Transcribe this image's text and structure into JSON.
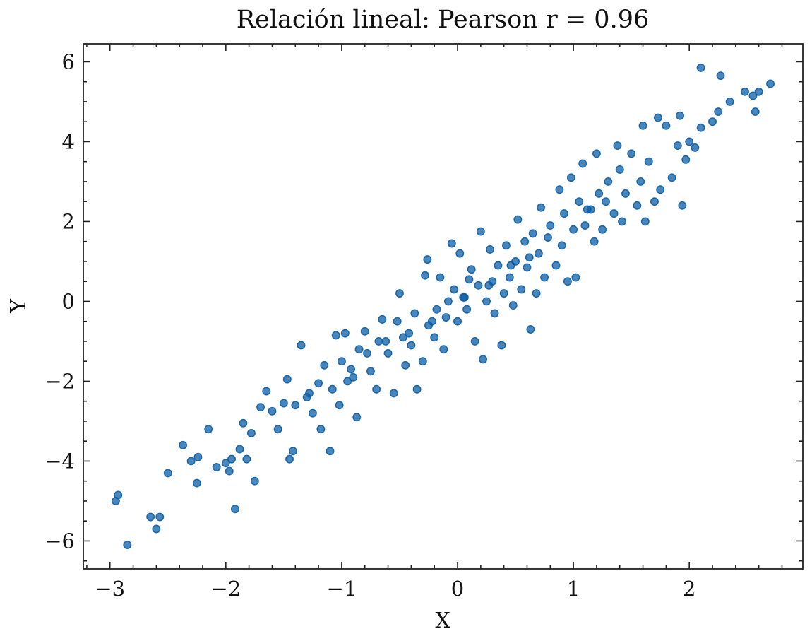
{
  "chart_data": {
    "type": "scatter",
    "title": "Relación lineal: Pearson r = 0.96",
    "xlabel": "X",
    "ylabel": "Y",
    "color": "#0c5da5",
    "xlim": [
      -3.23,
      2.98
    ],
    "ylim": [
      -6.7,
      6.45
    ],
    "xticks": [
      {
        "value": -3,
        "label": "−3"
      },
      {
        "value": -2,
        "label": "−2"
      },
      {
        "value": -1,
        "label": "−1"
      },
      0,
      1,
      2
    ],
    "yticks": [
      {
        "value": -6,
        "label": "−6"
      },
      {
        "value": -4,
        "label": "−4"
      },
      {
        "value": -2,
        "label": "−2"
      },
      0,
      2,
      4,
      6
    ],
    "xticks_minor": [
      -3.2,
      -2.8,
      -2.6,
      -2.4,
      -2.2,
      -1.8,
      -1.6,
      -1.4,
      -1.2,
      -0.8,
      -0.6,
      -0.4,
      -0.2,
      0.2,
      0.4,
      0.6,
      0.8,
      1.2,
      1.4,
      1.6,
      1.8,
      2.2,
      2.4,
      2.6,
      2.8
    ],
    "yticks_minor": [
      -6.5,
      -5.5,
      -5,
      -4.5,
      -3.5,
      -3,
      -2.5,
      -1.5,
      -1,
      -0.5,
      0.5,
      1,
      1.5,
      2.5,
      3,
      3.5,
      4.5,
      5,
      5.5
    ],
    "x": [
      -2.95,
      -2.93,
      -2.85,
      -2.65,
      -2.6,
      -2.57,
      -2.5,
      -2.37,
      -2.3,
      -2.25,
      -2.24,
      -2.15,
      -2.08,
      -2.0,
      -1.97,
      -1.95,
      -1.92,
      -1.88,
      -1.85,
      -1.82,
      -1.78,
      -1.75,
      -1.7,
      -1.65,
      -1.6,
      -1.55,
      -1.5,
      -1.47,
      -1.45,
      -1.42,
      -1.35,
      -1.3,
      -1.25,
      -1.2,
      -1.18,
      -1.15,
      -1.1,
      -1.08,
      -1.05,
      -1.02,
      -1.0,
      -0.97,
      -0.95,
      -0.9,
      -0.87,
      -0.85,
      -0.8,
      -0.75,
      -0.7,
      -0.68,
      -0.65,
      -0.6,
      -0.55,
      -0.52,
      -0.5,
      -0.47,
      -0.45,
      -0.4,
      -0.37,
      -0.35,
      -0.3,
      -0.28,
      -0.26,
      -0.25,
      -0.2,
      -0.18,
      -0.15,
      -0.12,
      -0.1,
      -0.08,
      -0.05,
      -0.03,
      0.0,
      0.02,
      0.05,
      0.08,
      0.1,
      0.12,
      0.15,
      0.18,
      0.2,
      0.22,
      0.25,
      0.28,
      0.3,
      0.32,
      0.35,
      0.38,
      0.4,
      0.42,
      0.45,
      0.48,
      0.5,
      0.52,
      0.55,
      0.58,
      0.6,
      0.63,
      0.65,
      0.68,
      0.7,
      0.72,
      0.75,
      0.8,
      0.85,
      0.88,
      0.9,
      0.92,
      0.95,
      0.98,
      1.0,
      1.02,
      1.05,
      1.08,
      1.1,
      1.15,
      1.18,
      1.2,
      1.22,
      1.25,
      1.3,
      1.35,
      1.38,
      1.4,
      1.42,
      1.45,
      1.5,
      1.55,
      1.58,
      1.6,
      1.62,
      1.65,
      1.7,
      1.73,
      1.75,
      1.8,
      1.85,
      1.9,
      1.92,
      1.94,
      1.97,
      2.0,
      2.05,
      2.1,
      2.1,
      2.2,
      2.25,
      2.27,
      2.35,
      2.48,
      2.55,
      2.57,
      2.6,
      2.7,
      -1.4,
      -1.28,
      -0.92,
      -0.78,
      -0.62,
      -0.42,
      -0.22,
      0.06,
      0.27,
      0.46,
      0.62,
      0.78,
      1.12,
      1.28
    ],
    "values": [
      -5.0,
      -4.85,
      -6.1,
      -5.4,
      -5.7,
      -5.4,
      -4.3,
      -3.6,
      -4.0,
      -4.55,
      -3.9,
      -3.2,
      -4.15,
      -4.05,
      -4.25,
      -3.95,
      -5.2,
      -3.7,
      -3.05,
      -3.95,
      -3.3,
      -4.5,
      -2.65,
      -2.25,
      -2.75,
      -3.2,
      -2.55,
      -1.95,
      -3.95,
      -3.75,
      -1.1,
      -2.4,
      -2.8,
      -2.05,
      -3.2,
      -1.6,
      -3.75,
      -2.2,
      -0.85,
      -2.6,
      -1.5,
      -0.8,
      -2.0,
      -1.9,
      -2.9,
      -1.2,
      -0.75,
      -1.75,
      -2.2,
      -1.0,
      -0.45,
      -1.3,
      -2.3,
      -0.5,
      0.2,
      -0.9,
      -1.6,
      -1.1,
      -0.3,
      -2.2,
      -1.5,
      0.65,
      1.05,
      -0.6,
      -0.9,
      -0.2,
      0.6,
      -1.2,
      -0.4,
      0.0,
      1.45,
      0.3,
      -0.5,
      1.2,
      0.1,
      -0.2,
      0.55,
      0.8,
      -1.0,
      0.4,
      1.75,
      -1.45,
      0.0,
      1.3,
      0.5,
      -0.3,
      0.9,
      -1.1,
      0.2,
      1.4,
      0.6,
      -0.1,
      1.0,
      2.05,
      0.3,
      1.5,
      0.85,
      -0.7,
      1.7,
      0.2,
      1.2,
      2.35,
      0.6,
      1.9,
      0.9,
      2.8,
      1.4,
      2.2,
      0.5,
      3.1,
      1.8,
      0.6,
      2.5,
      3.45,
      1.9,
      2.3,
      1.5,
      3.7,
      2.7,
      1.8,
      3.0,
      2.2,
      3.9,
      3.3,
      2.0,
      2.7,
      3.7,
      2.4,
      3.0,
      4.4,
      2.0,
      3.5,
      2.5,
      4.6,
      2.8,
      4.4,
      3.1,
      3.9,
      4.65,
      2.4,
      3.55,
      4.0,
      3.85,
      5.85,
      4.35,
      4.5,
      4.75,
      5.65,
      5.0,
      5.25,
      5.15,
      4.75,
      5.25,
      5.45,
      -2.6,
      -2.3,
      -1.7,
      -1.3,
      -1.0,
      -0.8,
      -0.5,
      0.1,
      0.4,
      0.9,
      1.1,
      1.6,
      2.3,
      2.5
    ]
  }
}
